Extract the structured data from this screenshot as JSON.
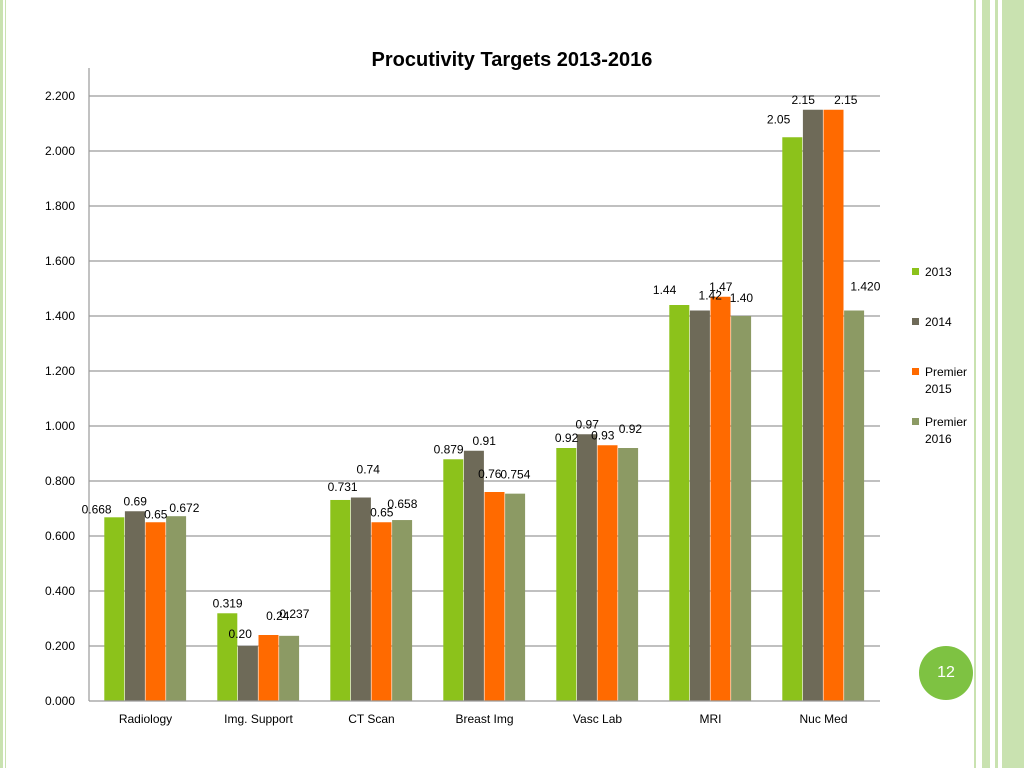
{
  "slide": {
    "page_number": "12",
    "accent_color": "#7ec242",
    "border_color": "#c9e2b0"
  },
  "chart_data": {
    "type": "bar",
    "title": "Procutivity Targets 2013-2016",
    "xlabel": "",
    "ylabel": "",
    "ylim": [
      0,
      2.2
    ],
    "y_ticks": [
      "0.000",
      "0.200",
      "0.400",
      "0.600",
      "0.800",
      "1.000",
      "1.200",
      "1.400",
      "1.600",
      "1.800",
      "2.000",
      "2.200"
    ],
    "grid": true,
    "legend_position": "right",
    "categories": [
      "Radiology",
      "Img. Support",
      "CT Scan",
      "Breast Img",
      "Vasc Lab",
      "MRI",
      "Nuc Med"
    ],
    "series": [
      {
        "name": "2013",
        "color": "#8cc21b",
        "values": [
          0.668,
          0.319,
          0.731,
          0.879,
          0.92,
          1.44,
          2.05
        ],
        "labels": [
          "0.668",
          "0.319",
          "0.731",
          "0.879",
          "0.92",
          "1.44",
          "2.05"
        ]
      },
      {
        "name": "2014",
        "color": "#6e6a58",
        "values": [
          0.69,
          0.2,
          0.74,
          0.91,
          0.97,
          1.42,
          2.15
        ],
        "labels": [
          "0.69",
          "0.20",
          "0.74",
          "0.91",
          "0.97",
          "1.42",
          "2.15"
        ]
      },
      {
        "name": "Premier 2015",
        "color": "#ff6a00",
        "values": [
          0.65,
          0.24,
          0.65,
          0.76,
          0.93,
          1.47,
          2.15
        ],
        "labels": [
          "0.65",
          "0.24",
          "0.65",
          "0.76",
          "0.93",
          "1.47",
          "2.15"
        ]
      },
      {
        "name": "Premier 2016",
        "color": "#8c9a64",
        "values": [
          0.672,
          0.237,
          0.658,
          0.754,
          0.92,
          1.4,
          1.42
        ],
        "labels": [
          "0.672",
          "0.237",
          "0.658",
          "0.754",
          "0.92",
          "1.40",
          "1.420"
        ]
      }
    ]
  }
}
